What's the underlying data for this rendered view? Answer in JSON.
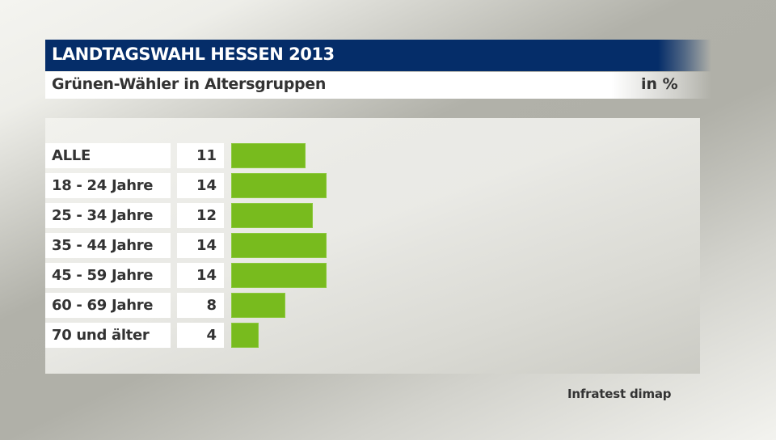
{
  "header": {
    "title": "LANDTAGSWAHL HESSEN 2013",
    "subtitle": "Grünen-Wähler in Altersgruppen",
    "unit": "in %"
  },
  "colors": {
    "title_bar": "#052d69",
    "bar": "#78bb1e",
    "text": "#333333"
  },
  "rows": [
    {
      "label": "ALLE",
      "value": "11"
    },
    {
      "label": "18 - 24 Jahre",
      "value": "14"
    },
    {
      "label": "25 - 34 Jahre",
      "value": "12"
    },
    {
      "label": "35 - 44 Jahre",
      "value": "14"
    },
    {
      "label": "45 - 59 Jahre",
      "value": "14"
    },
    {
      "label": "60 - 69 Jahre",
      "value": "8"
    },
    {
      "label": "70 und älter",
      "value": "4"
    }
  ],
  "source": "Infratest dimap",
  "chart_data": {
    "type": "bar",
    "orientation": "horizontal",
    "title": "LANDTAGSWAHL HESSEN 2013",
    "subtitle": "Grünen-Wähler in Altersgruppen",
    "unit": "in %",
    "categories": [
      "ALLE",
      "18 - 24 Jahre",
      "25 - 34 Jahre",
      "35 - 44 Jahre",
      "45 - 59 Jahre",
      "60 - 69 Jahre",
      "70 und älter"
    ],
    "values": [
      11,
      14,
      12,
      14,
      14,
      8,
      4
    ],
    "xlabel": "",
    "ylabel": "",
    "grid": false,
    "legend": null,
    "source": "Infratest dimap"
  }
}
